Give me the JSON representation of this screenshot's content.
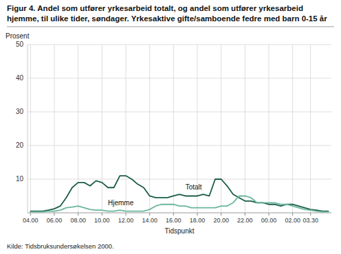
{
  "chart_data": {
    "type": "line",
    "title": "Figur 4. Andel som utfører yrkesarbeid totalt, og andel som utfører yrkesarbeid hjemme, til ulike tider, søndager. Yrkesaktive gifte/samboende fedre med barn 0-15 år",
    "xlabel": "Tidspunkt",
    "ylabel": "Prosent",
    "source": "Kilde: Tidsbruksundersøkelsen 2000.",
    "categories": [
      "04.00",
      null,
      null,
      null,
      "06.00",
      null,
      null,
      null,
      "08.00",
      null,
      null,
      null,
      "10.00",
      null,
      null,
      null,
      "12.00",
      null,
      null,
      null,
      "14.00",
      null,
      null,
      null,
      "16.00",
      null,
      null,
      null,
      "18.00",
      null,
      null,
      null,
      "20.00",
      null,
      null,
      null,
      "22.00",
      null,
      null,
      null,
      "00.00",
      null,
      null,
      null,
      "02.00",
      null,
      null,
      "03.30",
      null,
      null,
      null
    ],
    "series": [
      {
        "name": "Totalt",
        "color": "#1a5c47",
        "values": [
          0.5,
          0.5,
          0.5,
          0.8,
          1.2,
          2.0,
          4.5,
          7.5,
          9.0,
          9.0,
          8.0,
          9.5,
          9.0,
          7.5,
          7.5,
          11.0,
          11.0,
          10.0,
          8.5,
          7.5,
          5.0,
          4.5,
          4.5,
          4.5,
          5.0,
          5.5,
          5.0,
          5.0,
          5.0,
          5.5,
          5.0,
          10.0,
          10.0,
          8.0,
          5.5,
          4.5,
          3.5,
          3.5,
          3.0,
          3.0,
          2.5,
          2.5,
          2.0,
          2.5,
          2.5,
          2.0,
          1.5,
          1.0,
          0.8,
          0.5,
          0.5
        ]
      },
      {
        "name": "Hjemme",
        "color": "#6ab5a0",
        "values": [
          0.3,
          0.3,
          0.3,
          0.5,
          0.5,
          0.8,
          1.5,
          1.7,
          2.0,
          1.5,
          1.0,
          0.8,
          0.8,
          0.5,
          0.5,
          0.8,
          0.5,
          0.5,
          0.5,
          0.5,
          1.0,
          2.0,
          2.5,
          2.5,
          2.5,
          2.0,
          2.0,
          1.5,
          1.5,
          1.5,
          1.5,
          1.5,
          2.0,
          2.0,
          3.0,
          5.0,
          5.0,
          4.5,
          3.0,
          3.0,
          3.0,
          3.0,
          2.5,
          2.5,
          2.0,
          1.5,
          1.0,
          0.8,
          0.5,
          0.3,
          0.3
        ]
      }
    ],
    "ylim": [
      0,
      50
    ],
    "yticks": [
      10,
      20,
      30,
      40,
      50
    ],
    "grid": true
  }
}
